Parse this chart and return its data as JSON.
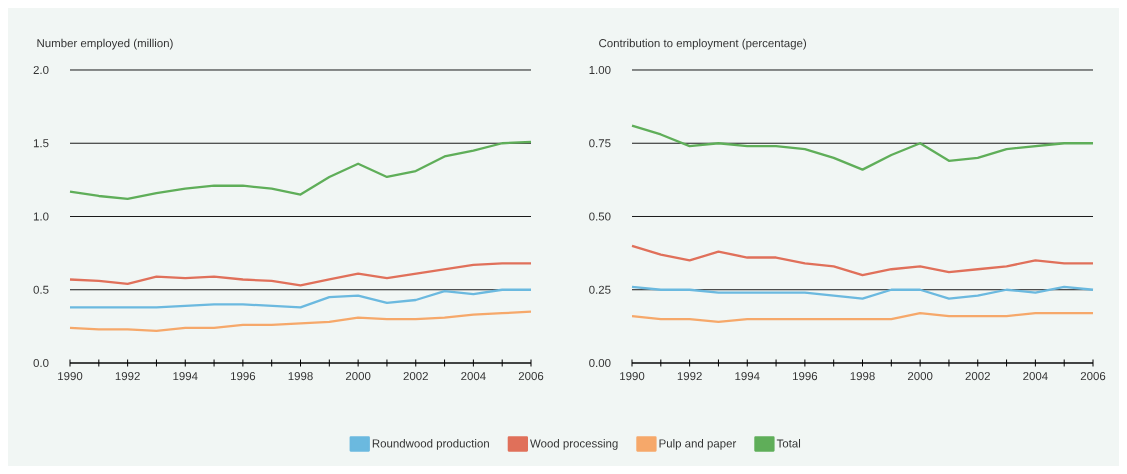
{
  "chart_data": [
    {
      "type": "line",
      "ylabel": "Number employed (million)",
      "x": [
        1990,
        1991,
        1992,
        1993,
        1994,
        1995,
        1996,
        1997,
        1998,
        1999,
        2000,
        2001,
        2002,
        2003,
        2004,
        2005,
        2006
      ],
      "xlim": [
        1990,
        2006
      ],
      "ylim": [
        0,
        2
      ],
      "yticks": [
        {
          "value": 0,
          "label": "0.0"
        },
        0.5,
        {
          "value": 1,
          "label": "1.0"
        },
        1.5,
        {
          "value": 2,
          "label": "2.0"
        }
      ],
      "xticks": [
        1990,
        {
          "value": 1991,
          "label": null
        },
        1992,
        {
          "value": 1993,
          "label": null
        },
        1994,
        {
          "value": 1995,
          "label": null
        },
        1996,
        {
          "value": 1997,
          "label": null
        },
        1998,
        {
          "value": 1999,
          "label": null
        },
        2000,
        {
          "value": 2001,
          "label": null
        },
        2002,
        {
          "value": 2003,
          "label": null
        },
        2004,
        {
          "value": 2005,
          "label": null
        },
        2006
      ],
      "grid": "y",
      "legend": "bottom",
      "series": [
        {
          "name": "Roundwood production",
          "color": "#6bb9df",
          "values": [
            0.38,
            0.38,
            0.38,
            0.38,
            0.39,
            0.4,
            0.4,
            0.39,
            0.38,
            0.45,
            0.46,
            0.41,
            0.43,
            0.49,
            0.47,
            0.5,
            0.5
          ]
        },
        {
          "name": "Wood processing",
          "color": "#e0705a",
          "values": [
            0.57,
            0.56,
            0.54,
            0.59,
            0.58,
            0.59,
            0.57,
            0.56,
            0.53,
            0.57,
            0.61,
            0.58,
            0.61,
            0.64,
            0.67,
            0.68,
            0.68
          ]
        },
        {
          "name": "Pulp and paper",
          "color": "#f6a86a",
          "values": [
            0.24,
            0.23,
            0.23,
            0.22,
            0.24,
            0.24,
            0.26,
            0.26,
            0.27,
            0.28,
            0.31,
            0.3,
            0.3,
            0.31,
            0.33,
            0.34,
            0.35
          ]
        },
        {
          "name": "Total",
          "color": "#5fae59",
          "values": [
            1.17,
            1.14,
            1.12,
            1.16,
            1.19,
            1.21,
            1.21,
            1.19,
            1.15,
            1.27,
            1.36,
            1.27,
            1.31,
            1.41,
            1.45,
            1.5,
            1.51
          ]
        }
      ]
    },
    {
      "type": "line",
      "ylabel": "Contribution to employment (percentage)",
      "x": [
        1990,
        1991,
        1992,
        1993,
        1994,
        1995,
        1996,
        1997,
        1998,
        1999,
        2000,
        2001,
        2002,
        2003,
        2004,
        2005,
        2006
      ],
      "xlim": [
        1990,
        2006
      ],
      "ylim": [
        0,
        1
      ],
      "yticks": [
        {
          "value": 0,
          "label": "0.00"
        },
        {
          "value": 0.25,
          "label": "0.25"
        },
        {
          "value": 0.5,
          "label": "0.50"
        },
        {
          "value": 0.75,
          "label": "0.75"
        },
        {
          "value": 1,
          "label": "1.00"
        }
      ],
      "xticks": [
        1990,
        {
          "value": 1991,
          "label": null
        },
        1992,
        {
          "value": 1993,
          "label": null
        },
        1994,
        {
          "value": 1995,
          "label": null
        },
        1996,
        {
          "value": 1997,
          "label": null
        },
        1998,
        {
          "value": 1999,
          "label": null
        },
        2000,
        {
          "value": 2001,
          "label": null
        },
        2002,
        {
          "value": 2003,
          "label": null
        },
        2004,
        {
          "value": 2005,
          "label": null
        },
        2006
      ],
      "grid": "y",
      "series": [
        {
          "color": "#6bb9df",
          "values": [
            0.26,
            0.25,
            0.25,
            0.24,
            0.24,
            0.24,
            0.24,
            0.23,
            0.22,
            0.25,
            0.25,
            0.22,
            0.23,
            0.25,
            0.24,
            0.26,
            0.25
          ]
        },
        {
          "color": "#e0705a",
          "values": [
            0.4,
            0.37,
            0.35,
            0.38,
            0.36,
            0.36,
            0.34,
            0.33,
            0.3,
            0.32,
            0.33,
            0.31,
            0.32,
            0.33,
            0.35,
            0.34,
            0.34
          ]
        },
        {
          "color": "#f6a86a",
          "values": [
            0.16,
            0.15,
            0.15,
            0.14,
            0.15,
            0.15,
            0.15,
            0.15,
            0.15,
            0.15,
            0.17,
            0.16,
            0.16,
            0.16,
            0.17,
            0.17,
            0.17
          ]
        },
        {
          "color": "#5fae59",
          "values": [
            0.81,
            0.78,
            0.74,
            0.75,
            0.74,
            0.74,
            0.73,
            0.7,
            0.66,
            0.71,
            0.75,
            0.69,
            0.7,
            0.73,
            0.74,
            0.75,
            0.75
          ]
        }
      ]
    }
  ]
}
